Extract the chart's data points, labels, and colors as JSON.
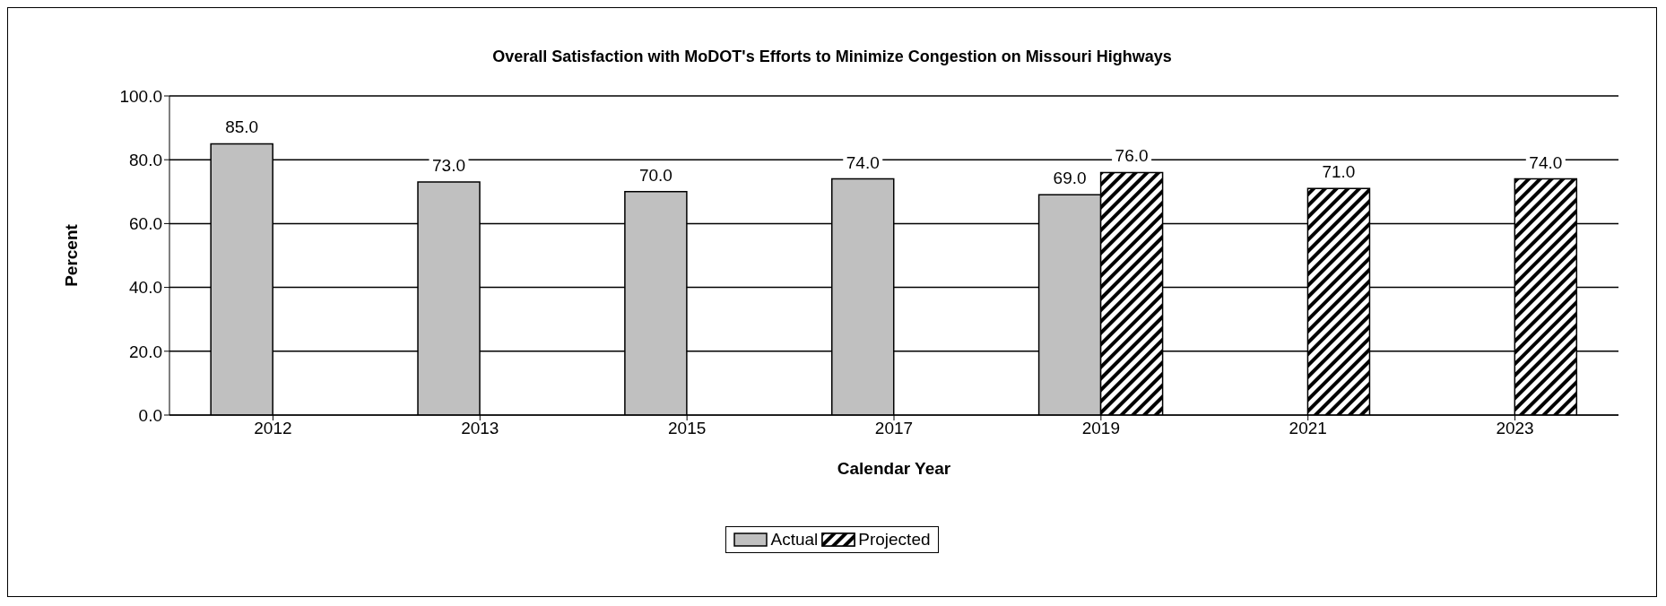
{
  "chart_data": {
    "type": "bar",
    "title": "Overall Satisfaction with MoDOT's Efforts to Minimize Congestion on Missouri Highways",
    "xlabel": "Calendar Year",
    "ylabel": "Percent",
    "categories": [
      "2012",
      "2013",
      "2015",
      "2017",
      "2019",
      "2021",
      "2023"
    ],
    "series": [
      {
        "name": "Actual",
        "color": "#c0c0c0",
        "values": [
          85,
          73,
          70,
          74,
          69,
          null,
          null
        ],
        "value_labels": [
          "85.0",
          "73.0",
          "70.0",
          "74.0",
          "69.0",
          null,
          null
        ]
      },
      {
        "name": "Projected",
        "color": "#000000",
        "values": [
          null,
          null,
          null,
          null,
          76,
          71,
          74
        ],
        "value_labels": [
          null,
          null,
          null,
          null,
          "76.0",
          "71.0",
          "74.0"
        ]
      }
    ],
    "ylim": [
      0,
      100
    ],
    "yticks": [
      {
        "value": 0,
        "label": "0.0"
      },
      {
        "value": 20,
        "label": "20.0"
      },
      {
        "value": 40,
        "label": "40.0"
      },
      {
        "value": 60,
        "label": "60.0"
      },
      {
        "value": 80,
        "label": "80.0"
      },
      {
        "value": 100,
        "label": "100.0"
      }
    ],
    "grid": "y",
    "legend": "bottom"
  }
}
